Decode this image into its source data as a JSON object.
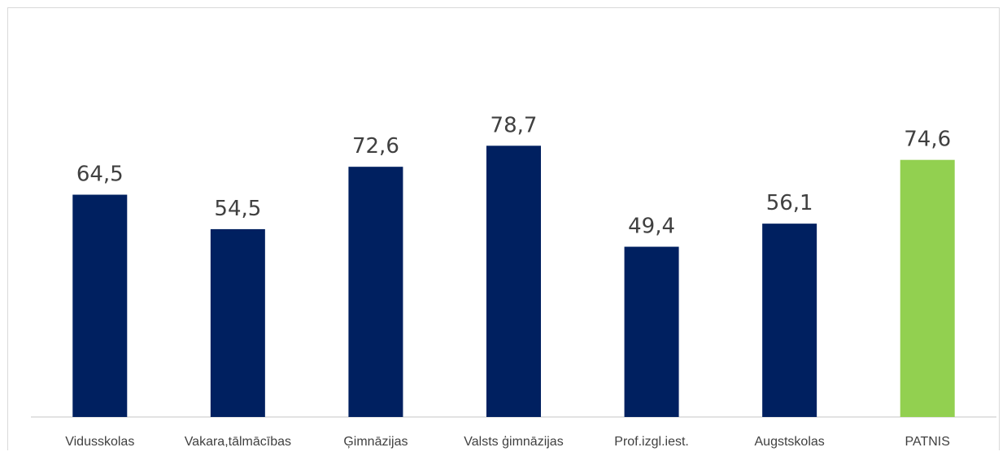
{
  "chart_data": {
    "type": "bar",
    "categories": [
      "Vidusskolas",
      "Vakara,tālmācības",
      "Ģimnāzijas",
      "Valsts ģimnāzijas",
      "Prof.izgl.iest.",
      "Augstskolas",
      "PATNIS"
    ],
    "values": [
      64.5,
      54.5,
      72.6,
      78.7,
      49.4,
      56.1,
      74.6
    ],
    "value_labels": [
      "64,5",
      "54,5",
      "72,6",
      "78,7",
      "49,4",
      "56,1",
      "74,6"
    ],
    "title": "",
    "xlabel": "",
    "ylabel": "",
    "ylim": [
      0,
      100
    ],
    "grid": false,
    "colors": [
      "#002060",
      "#002060",
      "#002060",
      "#002060",
      "#002060",
      "#002060",
      "#92D050"
    ]
  }
}
